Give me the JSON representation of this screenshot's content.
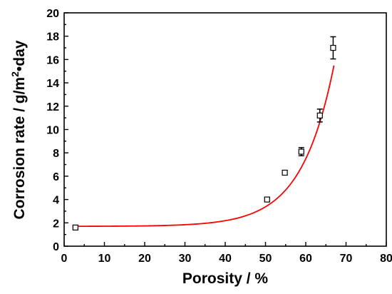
{
  "chart_data": {
    "type": "scatter",
    "title": "",
    "xlabel": "Porosity / %",
    "ylabel_main": "Corrosion rate / g/m",
    "ylabel_sup": "2",
    "ylabel_end": "•day",
    "xlim": [
      0,
      80
    ],
    "ylim": [
      0,
      20
    ],
    "xticks": [
      "0",
      "10",
      "20",
      "30",
      "40",
      "50",
      "60",
      "70",
      "80"
    ],
    "yticks": [
      "0",
      "2",
      "4",
      "6",
      "8",
      "10",
      "12",
      "14",
      "16",
      "18",
      "20"
    ],
    "grid": false,
    "legend": "none",
    "points": [
      {
        "x": 2.8,
        "y": 1.6,
        "err": 0.15
      },
      {
        "x": 50.4,
        "y": 4.0,
        "err": 0.15
      },
      {
        "x": 54.8,
        "y": 6.3,
        "err": 0.2
      },
      {
        "x": 58.9,
        "y": 8.1,
        "err": 0.35
      },
      {
        "x": 63.5,
        "y": 11.2,
        "err": 0.55
      },
      {
        "x": 66.8,
        "y": 17.0,
        "err": 0.95
      }
    ],
    "fit_curve": {
      "color": "#ff0000",
      "x_range": [
        2.5,
        67.0
      ],
      "model": "exponential",
      "params": {
        "y0": 1.7,
        "a": 0.0034,
        "b": 0.124
      }
    },
    "marker_color": "#000000"
  }
}
